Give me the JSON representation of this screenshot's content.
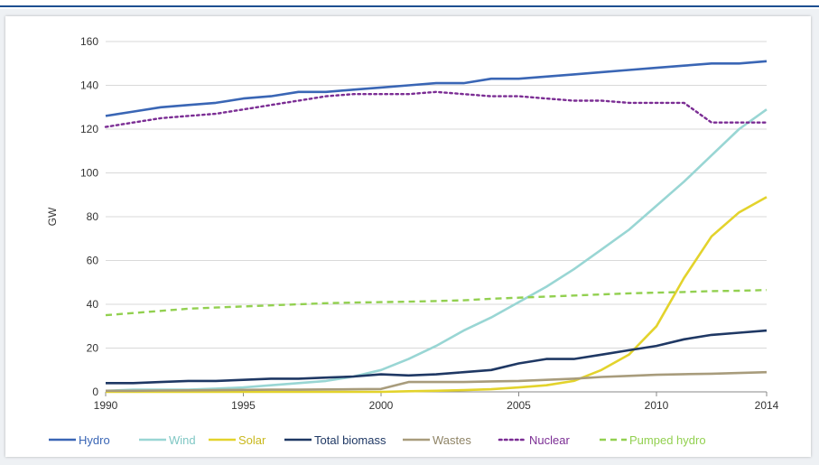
{
  "header": {
    "cropped_title": ""
  },
  "chart_data": {
    "type": "line",
    "title": "",
    "xlabel": "",
    "ylabel": "GW",
    "xlim": [
      1990,
      2014
    ],
    "ylim": [
      0,
      160
    ],
    "x_ticks": [
      "1990",
      "1995",
      "2000",
      "2005",
      "2010",
      "2014"
    ],
    "y_ticks": [
      "0",
      "20",
      "40",
      "60",
      "80",
      "100",
      "120",
      "140",
      "160"
    ],
    "grid": "horizontal",
    "legend_position": "bottom",
    "x": [
      1990,
      1991,
      1992,
      1993,
      1994,
      1995,
      1996,
      1997,
      1998,
      1999,
      2000,
      2001,
      2002,
      2003,
      2004,
      2005,
      2006,
      2007,
      2008,
      2009,
      2010,
      2011,
      2012,
      2013,
      2014
    ],
    "series": [
      {
        "name": "Hydro",
        "color": "#3a66b5",
        "dash": "solid",
        "values": [
          126,
          128,
          130,
          131,
          132,
          134,
          135,
          137,
          137,
          138,
          139,
          140,
          141,
          141,
          143,
          143,
          144,
          145,
          146,
          147,
          148,
          149,
          150,
          150,
          151
        ]
      },
      {
        "name": "Wind",
        "color": "#99d6d4",
        "dash": "solid",
        "values": [
          0.5,
          1,
          1,
          1,
          1.5,
          2,
          3,
          4,
          5,
          7,
          10,
          15,
          21,
          28,
          34,
          41,
          48,
          56,
          65,
          74,
          85,
          96,
          108,
          120,
          129
        ]
      },
      {
        "name": "Solar",
        "color": "#e3d32c",
        "dash": "solid",
        "values": [
          0,
          0,
          0,
          0,
          0,
          0,
          0,
          0,
          0,
          0,
          0,
          0.3,
          0.5,
          0.8,
          1.2,
          2,
          3,
          5,
          10,
          17,
          30,
          52,
          71,
          82,
          89
        ]
      },
      {
        "name": "Total biomass",
        "color": "#1f3864",
        "dash": "solid",
        "values": [
          4,
          4,
          4.5,
          5,
          5,
          5.5,
          6,
          6,
          6.5,
          7,
          8,
          7.5,
          8,
          9,
          10,
          13,
          15,
          15,
          17,
          19,
          21,
          24,
          26,
          27,
          28
        ]
      },
      {
        "name": "Wastes",
        "color": "#a89c7c",
        "dash": "solid",
        "values": [
          0.5,
          0.5,
          0.6,
          0.7,
          0.8,
          0.9,
          1,
          1,
          1.1,
          1.2,
          1.3,
          4.5,
          4.5,
          4.5,
          4.8,
          5,
          5.5,
          6,
          6.8,
          7.3,
          7.8,
          8.1,
          8.3,
          8.6,
          9
        ]
      },
      {
        "name": "Nuclear",
        "color": "#7b2d94",
        "dash": "dotted",
        "values": [
          121,
          123,
          125,
          126,
          127,
          129,
          131,
          133,
          135,
          136,
          136,
          136,
          137,
          136,
          135,
          135,
          134,
          133,
          133,
          132,
          132,
          132,
          123,
          123,
          123
        ]
      },
      {
        "name": "Pumped hydro",
        "color": "#92d050",
        "dash": "dashed",
        "values": [
          35,
          36,
          37,
          38,
          38.5,
          39,
          39.5,
          40,
          40.5,
          40.8,
          41,
          41.2,
          41.5,
          41.8,
          42.5,
          43,
          43.5,
          44,
          44.5,
          45,
          45.3,
          45.6,
          46,
          46.2,
          46.5
        ]
      }
    ]
  }
}
